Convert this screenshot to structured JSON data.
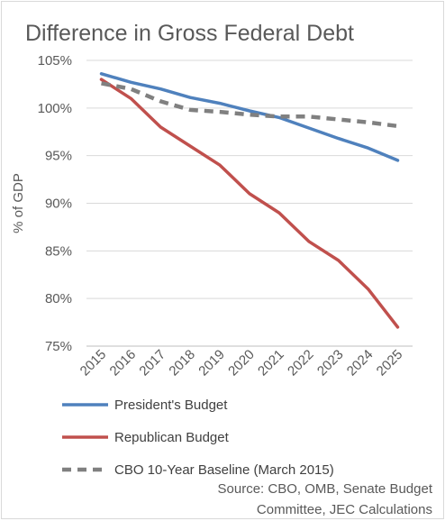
{
  "chart_data": {
    "type": "line",
    "title": "Difference in Gross Federal Debt",
    "ylabel": "% of GDP",
    "xlabel": "",
    "x": [
      "2015",
      "2016",
      "2017",
      "2018",
      "2019",
      "2020",
      "2021",
      "2022",
      "2023",
      "2024",
      "2025"
    ],
    "ylim": [
      75,
      105
    ],
    "yticks": [
      75,
      80,
      85,
      90,
      95,
      100,
      105
    ],
    "ytick_labels": [
      "75%",
      "80%",
      "85%",
      "90%",
      "95%",
      "100%",
      "105%"
    ],
    "grid": true,
    "legend_position": "bottom",
    "series": [
      {
        "name": "President's Budget",
        "color": "#4f81bd",
        "style": "solid",
        "values": [
          103.6,
          102.7,
          102.0,
          101.1,
          100.5,
          99.7,
          99.0,
          97.9,
          96.8,
          95.8,
          94.5
        ]
      },
      {
        "name": "Republican Budget",
        "color": "#c0504d",
        "style": "solid",
        "values": [
          103.0,
          101.0,
          98.0,
          96.0,
          94.0,
          91.0,
          89.0,
          86.0,
          84.0,
          81.0,
          77.0
        ]
      },
      {
        "name": "CBO 10-Year Baseline (March 2015)",
        "color": "#808080",
        "style": "dashed",
        "values": [
          102.6,
          102.0,
          100.7,
          99.8,
          99.6,
          99.3,
          99.1,
          99.1,
          98.8,
          98.5,
          98.1
        ]
      }
    ],
    "source_lines": [
      "Source: CBO, OMB, Senate Budget",
      "Committee, JEC Calculations"
    ]
  }
}
